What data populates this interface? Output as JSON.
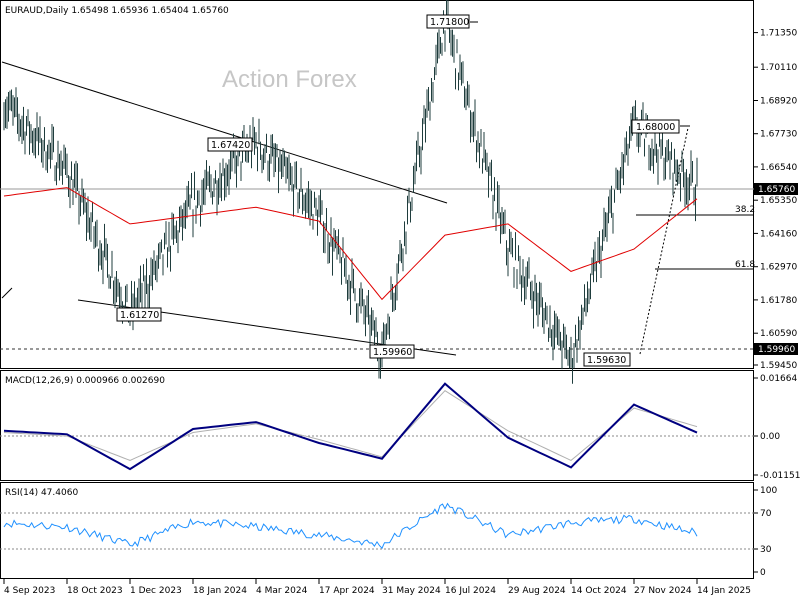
{
  "watermark": "Action Forex",
  "main": {
    "header": "EURAUD,Daily  1.65498 1.65936 1.65404 1.65760",
    "y_ticks": [
      "1.71350",
      "1.70110",
      "1.68920",
      "1.67730",
      "1.66540",
      "1.65350",
      "1.64160",
      "1.62970",
      "1.61780",
      "1.60590",
      "1.59450"
    ],
    "current_price": "1.65760",
    "support_level": "1.59960",
    "annotations": [
      "1.71800",
      "1.68000",
      "1.67420",
      "1.61270",
      "1.59960",
      "1.59630"
    ],
    "fib_labels": [
      "38.2",
      "61.8"
    ]
  },
  "macd": {
    "header": "MACD(12,26,9) 0.000966 0.002690",
    "y_ticks": [
      "0.01664",
      "0.00",
      "-0.011515"
    ]
  },
  "rsi": {
    "header": "RSI(14) 47.4060",
    "y_ticks": [
      "100",
      "70",
      "30",
      "0"
    ]
  },
  "x_ticks": [
    "4 Sep 2023",
    "18 Oct 2023",
    "1 Dec 2023",
    "18 Jan 2024",
    "4 Mar 2024",
    "17 Apr 2024",
    "31 May 2024",
    "16 Jul 2024",
    "29 Aug 2024",
    "14 Oct 2024",
    "27 Nov 2024",
    "14 Jan 2025"
  ],
  "colors": {
    "bars": "#1f3d3d",
    "ma": "#e00000",
    "macd_line": "#000080",
    "macd_signal": "#b0b0b0",
    "rsi_line": "#1e90ff",
    "grid": "#888888"
  },
  "chart_data": [
    {
      "type": "line",
      "name": "EURAUD Daily price",
      "ylim": [
        1.5945,
        1.718
      ],
      "anchors": [
        {
          "date": "4 Sep 2023",
          "close": 1.688
        },
        {
          "date": "18 Oct 2023",
          "close": 1.664
        },
        {
          "date": "1 Dec 2023",
          "close": 1.6127
        },
        {
          "date": "18 Jan 2024",
          "close": 1.652
        },
        {
          "date": "4 Mar 2024",
          "close": 1.6742
        },
        {
          "date": "17 Apr 2024",
          "close": 1.648
        },
        {
          "date": "31 May 2024",
          "close": 1.5996
        },
        {
          "date": "16 Jul 2024",
          "close": 1.718
        },
        {
          "date": "29 Aug 2024",
          "close": 1.636
        },
        {
          "date": "14 Oct 2024",
          "close": 1.5963
        },
        {
          "date": "27 Nov 2024",
          "close": 1.68
        },
        {
          "date": "14 Jan 2025",
          "close": 1.6576
        }
      ],
      "moving_average": [
        {
          "date": "4 Sep 2023",
          "value": 1.655
        },
        {
          "date": "18 Oct 2023",
          "value": 1.658
        },
        {
          "date": "1 Dec 2023",
          "value": 1.645
        },
        {
          "date": "18 Jan 2024",
          "value": 1.648
        },
        {
          "date": "4 Mar 2024",
          "value": 1.651
        },
        {
          "date": "17 Apr 2024",
          "value": 1.646
        },
        {
          "date": "31 May 2024",
          "value": 1.618
        },
        {
          "date": "16 Jul 2024",
          "value": 1.641
        },
        {
          "date": "29 Aug 2024",
          "value": 1.645
        },
        {
          "date": "14 Oct 2024",
          "value": 1.628
        },
        {
          "date": "27 Nov 2024",
          "value": 1.636
        },
        {
          "date": "14 Jan 2025",
          "value": 1.654
        }
      ]
    },
    {
      "type": "line",
      "name": "MACD(12,26,9)",
      "ylim": [
        -0.011515,
        0.01664
      ],
      "anchors": [
        {
          "date": "4 Sep 2023",
          "macd": 0.0015,
          "signal": 0.001
        },
        {
          "date": "18 Oct 2023",
          "macd": 0.0005,
          "signal": 0.0
        },
        {
          "date": "1 Dec 2023",
          "macd": -0.0095,
          "signal": -0.007
        },
        {
          "date": "18 Jan 2024",
          "macd": 0.002,
          "signal": 0.001
        },
        {
          "date": "4 Mar 2024",
          "macd": 0.004,
          "signal": 0.0035
        },
        {
          "date": "17 Apr 2024",
          "macd": -0.002,
          "signal": -0.001
        },
        {
          "date": "31 May 2024",
          "macd": -0.0065,
          "signal": -0.006
        },
        {
          "date": "16 Jul 2024",
          "macd": 0.015,
          "signal": 0.013
        },
        {
          "date": "29 Aug 2024",
          "macd": -0.0005,
          "signal": 0.0015
        },
        {
          "date": "14 Oct 2024",
          "macd": -0.009,
          "signal": -0.007
        },
        {
          "date": "27 Nov 2024",
          "macd": 0.009,
          "signal": 0.008
        },
        {
          "date": "14 Jan 2025",
          "macd": 0.000966,
          "signal": 0.00269
        }
      ]
    },
    {
      "type": "line",
      "name": "RSI(14)",
      "ylim": [
        0,
        100
      ],
      "levels": [
        30,
        70
      ],
      "anchors": [
        {
          "date": "4 Sep 2023",
          "value": 60
        },
        {
          "date": "18 Oct 2023",
          "value": 55
        },
        {
          "date": "1 Dec 2023",
          "value": 33
        },
        {
          "date": "18 Jan 2024",
          "value": 62
        },
        {
          "date": "4 Mar 2024",
          "value": 55
        },
        {
          "date": "17 Apr 2024",
          "value": 45
        },
        {
          "date": "31 May 2024",
          "value": 33
        },
        {
          "date": "16 Jul 2024",
          "value": 82
        },
        {
          "date": "29 Aug 2024",
          "value": 45
        },
        {
          "date": "14 Oct 2024",
          "value": 60
        },
        {
          "date": "27 Nov 2024",
          "value": 65
        },
        {
          "date": "14 Jan 2025",
          "value": 47.406
        }
      ]
    }
  ]
}
